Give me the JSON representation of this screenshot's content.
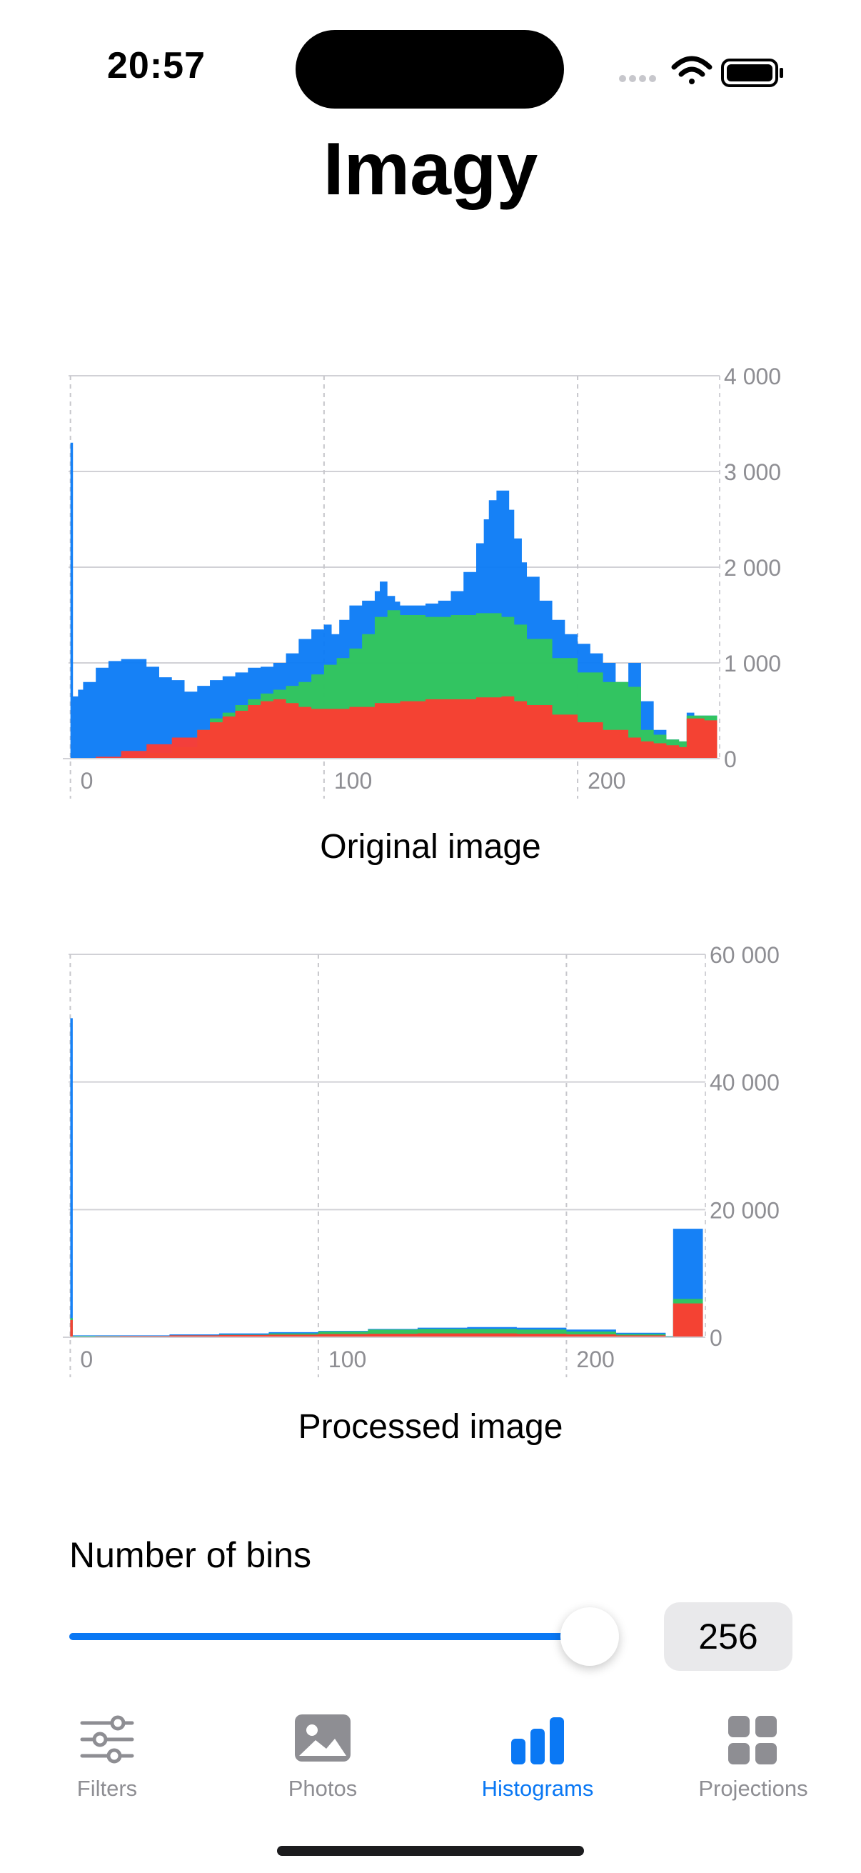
{
  "status_bar": {
    "time": "20:57"
  },
  "app": {
    "title": "Imagy"
  },
  "colors": {
    "blue": "#0a7af6",
    "green": "#34c759",
    "red": "#ff3b30",
    "accent": "#0a78f4",
    "grey_text": "#8e8e93"
  },
  "chart_data": [
    {
      "type": "area",
      "caption": "Original image",
      "x_ticks": [
        0,
        100,
        200
      ],
      "x_tick_labels": [
        "0",
        "100",
        "200"
      ],
      "xlim": [
        -3,
        256
      ],
      "y_ticks": [
        0,
        1000,
        2000,
        3000,
        4000
      ],
      "y_tick_labels": [
        "0",
        "1 000",
        "2 000",
        "3 000",
        "4 000"
      ],
      "ylim": [
        0,
        4000
      ],
      "grid": true,
      "series": [
        {
          "name": "Blue",
          "color": "#0a7af6",
          "x": [
            0,
            1,
            3,
            5,
            10,
            15,
            20,
            25,
            30,
            35,
            40,
            45,
            50,
            55,
            60,
            65,
            70,
            75,
            80,
            85,
            90,
            95,
            100,
            103,
            106,
            110,
            115,
            120,
            122,
            125,
            128,
            130,
            135,
            140,
            145,
            150,
            155,
            160,
            163,
            165,
            168,
            170,
            173,
            175,
            178,
            180,
            185,
            190,
            195,
            200,
            205,
            210,
            215,
            220,
            225,
            230,
            235,
            240,
            243,
            246,
            250,
            255
          ],
          "values": [
            3300,
            650,
            720,
            800,
            950,
            1020,
            1040,
            1040,
            960,
            850,
            820,
            700,
            760,
            820,
            860,
            900,
            950,
            960,
            1000,
            1100,
            1250,
            1350,
            1400,
            1300,
            1450,
            1600,
            1650,
            1750,
            1850,
            1700,
            1640,
            1600,
            1600,
            1620,
            1650,
            1750,
            1950,
            2250,
            2500,
            2700,
            2800,
            2800,
            2600,
            2300,
            2050,
            1900,
            1650,
            1450,
            1300,
            1200,
            1100,
            1000,
            800,
            1000,
            600,
            300,
            200,
            180,
            480,
            450,
            450,
            450
          ]
        },
        {
          "name": "Green",
          "color": "#34c759",
          "x": [
            0,
            5,
            10,
            20,
            30,
            40,
            50,
            55,
            60,
            65,
            70,
            75,
            80,
            85,
            90,
            95,
            100,
            105,
            110,
            115,
            120,
            125,
            130,
            140,
            150,
            160,
            170,
            175,
            180,
            190,
            200,
            210,
            220,
            225,
            230,
            235,
            240,
            243,
            250,
            255
          ],
          "values": [
            0,
            0,
            0,
            20,
            60,
            120,
            300,
            420,
            480,
            560,
            620,
            680,
            720,
            760,
            800,
            880,
            980,
            1050,
            1150,
            1300,
            1480,
            1550,
            1500,
            1480,
            1500,
            1520,
            1480,
            1400,
            1250,
            1050,
            900,
            800,
            750,
            300,
            250,
            200,
            180,
            450,
            450,
            450
          ]
        },
        {
          "name": "Red",
          "color": "#ff3b30",
          "x": [
            0,
            5,
            10,
            20,
            30,
            40,
            50,
            55,
            60,
            65,
            70,
            75,
            80,
            85,
            90,
            95,
            100,
            110,
            120,
            130,
            140,
            150,
            160,
            170,
            175,
            180,
            190,
            200,
            210,
            220,
            225,
            230,
            235,
            240,
            243,
            250,
            255
          ],
          "values": [
            0,
            0,
            20,
            80,
            150,
            220,
            300,
            380,
            440,
            500,
            560,
            600,
            620,
            580,
            540,
            520,
            520,
            540,
            580,
            600,
            620,
            620,
            640,
            650,
            600,
            560,
            460,
            380,
            300,
            220,
            180,
            160,
            140,
            120,
            420,
            400,
            400
          ]
        }
      ]
    },
    {
      "type": "area",
      "caption": "Processed image",
      "x_ticks": [
        0,
        100,
        200
      ],
      "x_tick_labels": [
        "0",
        "100",
        "200"
      ],
      "xlim": [
        -3,
        256
      ],
      "y_ticks": [
        0,
        20000,
        40000,
        60000
      ],
      "y_tick_labels": [
        "0",
        "20 000",
        "40 000",
        "60 000"
      ],
      "ylim": [
        0,
        60000
      ],
      "grid": true,
      "series": [
        {
          "name": "Blue",
          "color": "#0a7af6",
          "x": [
            0,
            1,
            3,
            10,
            20,
            40,
            60,
            80,
            100,
            120,
            140,
            160,
            180,
            200,
            220,
            240,
            243,
            250,
            255
          ],
          "values": [
            50000,
            300,
            300,
            300,
            300,
            450,
            600,
            800,
            1000,
            1300,
            1500,
            1600,
            1500,
            1200,
            700,
            200,
            17000,
            17000,
            17000
          ]
        },
        {
          "name": "Green",
          "color": "#34c759",
          "x": [
            0,
            1,
            3,
            10,
            20,
            40,
            60,
            80,
            100,
            120,
            140,
            160,
            180,
            200,
            220,
            240,
            243,
            250,
            255
          ],
          "values": [
            3000,
            200,
            200,
            200,
            200,
            300,
            400,
            600,
            900,
            1200,
            1300,
            1300,
            1200,
            900,
            500,
            150,
            6000,
            6000,
            6000
          ]
        },
        {
          "name": "Red",
          "color": "#ff3b30",
          "x": [
            0,
            1,
            3,
            10,
            20,
            40,
            60,
            80,
            100,
            120,
            140,
            160,
            180,
            200,
            220,
            240,
            243,
            250,
            255
          ],
          "values": [
            2700,
            100,
            100,
            150,
            200,
            300,
            350,
            400,
            500,
            550,
            600,
            600,
            550,
            450,
            300,
            100,
            5300,
            5300,
            5300
          ]
        }
      ]
    }
  ],
  "bins": {
    "label": "Number of bins",
    "value": "256",
    "slider_fraction": 1.0
  },
  "tabbar": {
    "tabs": [
      {
        "label": "Filters",
        "icon": "sliders-icon",
        "active": false
      },
      {
        "label": "Photos",
        "icon": "photo-icon",
        "active": false
      },
      {
        "label": "Histograms",
        "icon": "bar-chart-icon",
        "active": true
      },
      {
        "label": "Projections",
        "icon": "grid-icon",
        "active": false
      }
    ]
  }
}
